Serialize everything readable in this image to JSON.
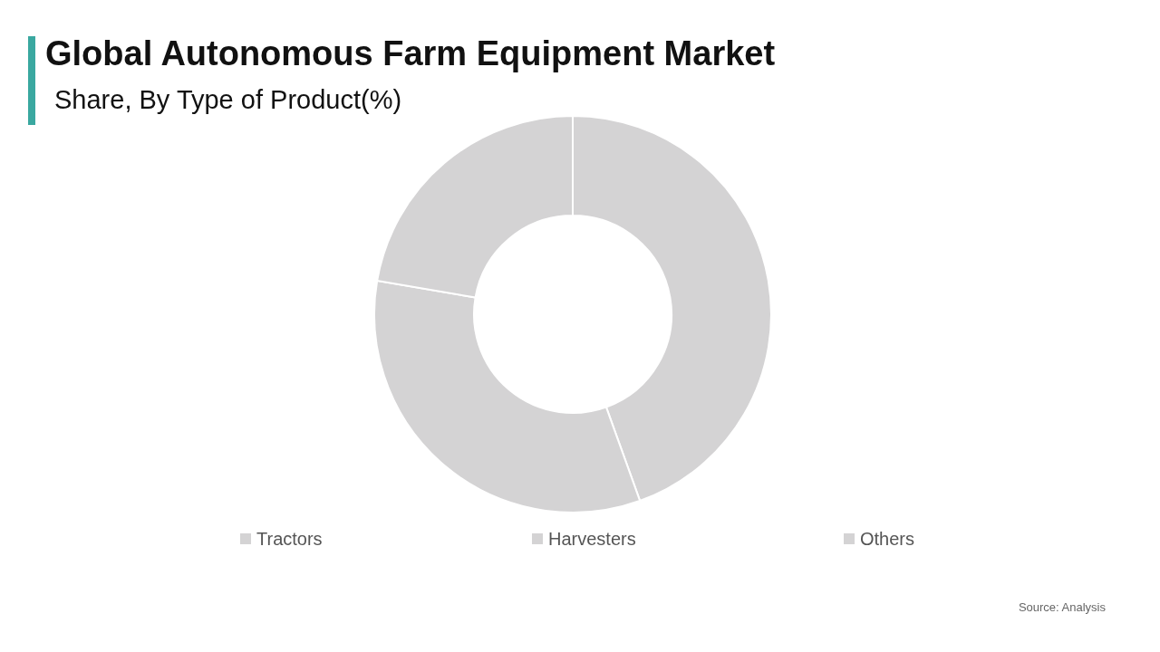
{
  "chart_data": {
    "type": "donut",
    "title": "Global Autonomous Farm Equipment Market",
    "subtitle": "Share, By Type of Product(%)",
    "categories": [
      "Tractors",
      "Harvesters",
      "Others"
    ],
    "values": [
      44.5,
      33.2,
      22.3
    ],
    "colors": [
      "#d4d3d4",
      "#d4d3d4",
      "#d4d3d4"
    ],
    "legend": "bottom",
    "annotations": [
      "Source: Analysis"
    ]
  }
}
